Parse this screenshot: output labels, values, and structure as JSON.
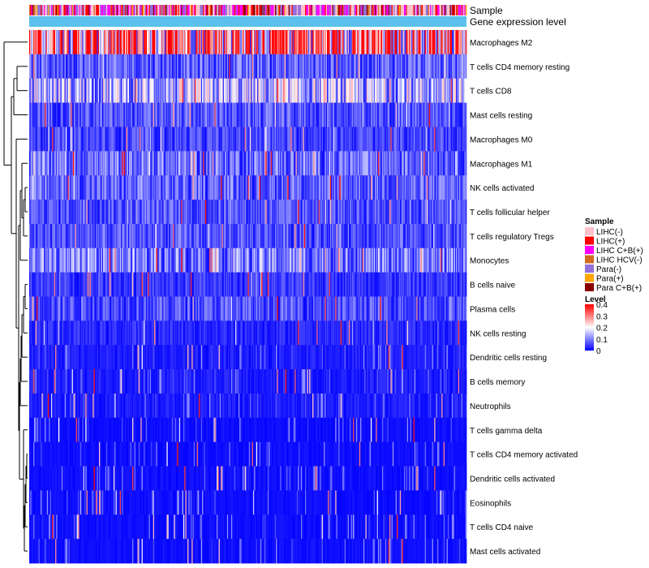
{
  "chart_data": {
    "type": "heatmap",
    "annotations": [
      "Sample",
      "Gene expression level"
    ],
    "rows": [
      "Macrophages M2",
      "T cells CD4 memory resting",
      "T cells CD8",
      "Mast cells resting",
      "Macrophages M0",
      "Macrophages M1",
      "NK cells activated",
      "T cells follicular helper",
      "T cells regulatory  Tregs",
      "Monocytes",
      "B cells naive",
      "Plasma cells",
      "NK cells resting",
      "Dendritic cells resting",
      "B cells memory",
      "Neutrophils",
      "T cells gamma delta",
      "T cells CD4 memory activated",
      "Dendritic cells activated",
      "Eosinophils",
      "T cells CD4 naive",
      "Mast cells activated"
    ],
    "row_mean_levels": [
      0.28,
      0.07,
      0.13,
      0.06,
      0.05,
      0.08,
      0.07,
      0.06,
      0.06,
      0.09,
      0.04,
      0.06,
      0.03,
      0.02,
      0.02,
      0.02,
      0.01,
      0.01,
      0.01,
      0.01,
      0.01,
      0.01
    ],
    "n_samples": 420,
    "legend_sample": {
      "title": "Sample",
      "items": [
        {
          "label": "LIHC(-)",
          "color": "#ffc0cb"
        },
        {
          "label": "LIHC(+)",
          "color": "#ff0000"
        },
        {
          "label": "LIHC C+B(+)",
          "color": "#ff00ff"
        },
        {
          "label": "LIHC HCV(-)",
          "color": "#d2691e"
        },
        {
          "label": "Para(-)",
          "color": "#9370db"
        },
        {
          "label": "Para(+)",
          "color": "#ffa500"
        },
        {
          "label": "Para C+B(+)",
          "color": "#8b0000"
        }
      ]
    },
    "legend_level": {
      "title": "Level",
      "ticks": [
        "0.4",
        "0.3",
        "0.2",
        "0.1",
        "0"
      ],
      "range": [
        0,
        0.4
      ],
      "colors": {
        "low": "#0000ff",
        "mid": "#ffffff",
        "high": "#ff0000"
      }
    },
    "expression_bar_color": "#5bc0eb"
  }
}
